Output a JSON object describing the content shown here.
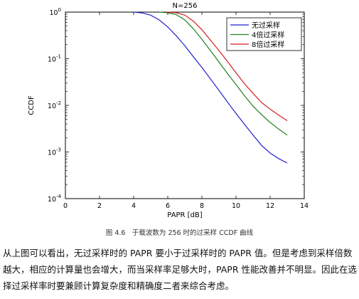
{
  "chart_data": {
    "type": "line",
    "title": "N=256",
    "xlabel": "PAPR [dB]",
    "ylabel": "CCDF",
    "x_scale": "linear",
    "y_scale": "log",
    "xlim": [
      0,
      14
    ],
    "ylim": [
      0.0001,
      1
    ],
    "x_ticks": [
      0,
      2,
      4,
      6,
      8,
      10,
      12,
      14
    ],
    "y_ticks": [
      {
        "value": 0.0001,
        "base": "10",
        "exp": "-4"
      },
      {
        "value": 0.001,
        "base": "10",
        "exp": "-3"
      },
      {
        "value": 0.01,
        "base": "10",
        "exp": "-2"
      },
      {
        "value": 0.1,
        "base": "10",
        "exp": "-1"
      },
      {
        "value": 1,
        "base": "10",
        "exp": "0"
      }
    ],
    "grid": false,
    "legend_position": "top-right",
    "series": [
      {
        "name": "无过采样",
        "color": "#2020d0",
        "x": [
          4.0,
          4.5,
          5.0,
          5.5,
          6.0,
          6.5,
          7.0,
          7.5,
          8.0,
          8.5,
          9.0,
          9.5,
          10.0,
          10.5,
          11.0,
          11.5,
          12.0,
          12.5,
          13.0
        ],
        "y": [
          1.0,
          0.96,
          0.86,
          0.68,
          0.48,
          0.31,
          0.19,
          0.11,
          0.065,
          0.037,
          0.021,
          0.0118,
          0.0067,
          0.0039,
          0.0023,
          0.00138,
          0.00095,
          0.00072,
          0.00058
        ]
      },
      {
        "name": "4倍过采样",
        "color": "#208020",
        "x": [
          5.5,
          6.0,
          6.5,
          7.0,
          7.5,
          8.0,
          8.5,
          9.0,
          9.5,
          10.0,
          10.5,
          11.0,
          11.5,
          12.0,
          12.5,
          13.0
        ],
        "y": [
          1.0,
          0.97,
          0.88,
          0.68,
          0.44,
          0.26,
          0.15,
          0.085,
          0.048,
          0.028,
          0.016,
          0.0096,
          0.0063,
          0.0043,
          0.0031,
          0.0023
        ]
      },
      {
        "name": "8倍过采样",
        "color": "#d02020",
        "x": [
          5.9,
          6.5,
          7.0,
          7.5,
          8.0,
          8.5,
          9.0,
          9.5,
          10.0,
          10.5,
          11.0,
          11.5,
          12.0,
          12.5,
          13.0
        ],
        "y": [
          1.0,
          0.97,
          0.86,
          0.64,
          0.42,
          0.25,
          0.15,
          0.087,
          0.05,
          0.029,
          0.018,
          0.0115,
          0.0083,
          0.0062,
          0.0047
        ]
      }
    ]
  },
  "caption": "图 4.6　于载波数为 256 时的过采样 CCDF 曲线",
  "paragraph": "从上图可以看出，无过采样时的 PAPR 要小于过采样时的 PAPR 值。但是考虑到采样倍数越大，相应的计算量也会增大，而当采样率足够大时，PAPR 性能改善并不明显。因此在选择过采样率时要兼顾计算复杂度和精确度二者来综合考虑。"
}
